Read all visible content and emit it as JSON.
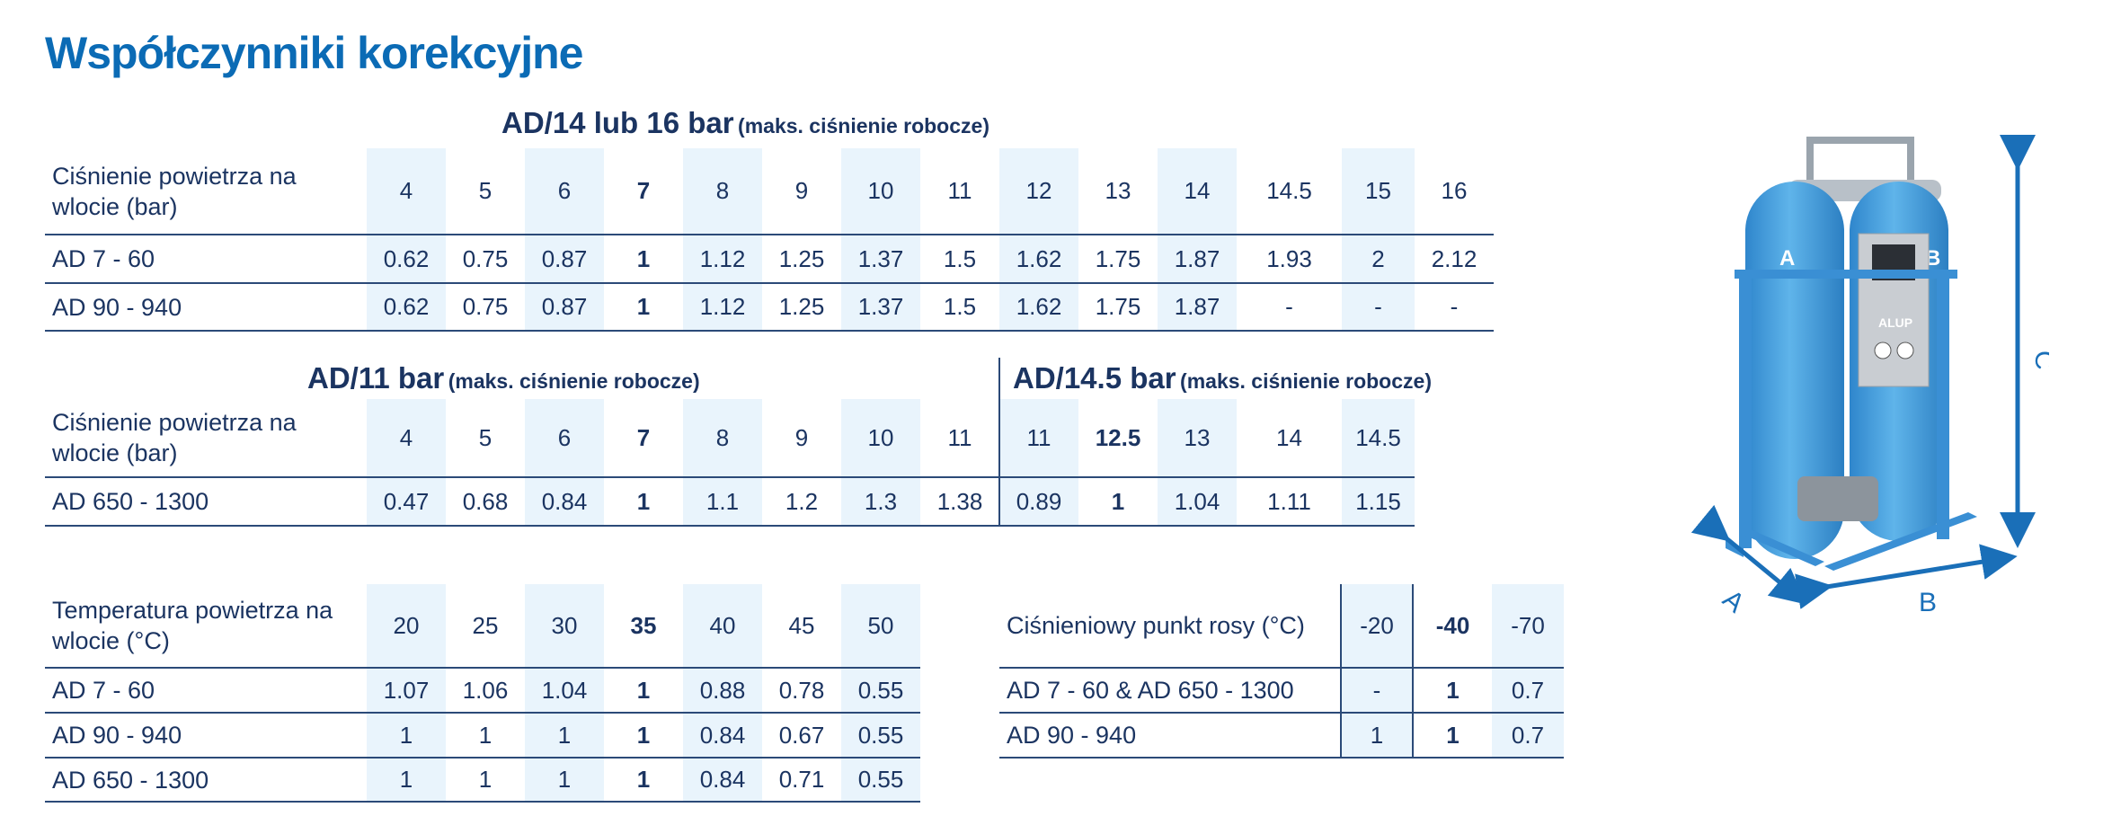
{
  "page_title": "Współczynniki korekcyjne",
  "table_pressure_14_16": {
    "title": "AD/14 lub 16 bar",
    "subtitle": "(maks. ciśnienie robocze)",
    "header_label": "Ciśnienie powietrza na wlocie (bar)",
    "columns": [
      "4",
      "5",
      "6",
      "7",
      "8",
      "9",
      "10",
      "11",
      "12",
      "13",
      "14",
      "14.5",
      "15",
      "16"
    ],
    "rows": [
      {
        "label": "AD 7 - 60",
        "values": [
          "0.62",
          "0.75",
          "0.87",
          "1",
          "1.12",
          "1.25",
          "1.37",
          "1.5",
          "1.62",
          "1.75",
          "1.87",
          "1.93",
          "2",
          "2.12"
        ]
      },
      {
        "label": "AD 90 - 940",
        "values": [
          "0.62",
          "0.75",
          "0.87",
          "1",
          "1.12",
          "1.25",
          "1.37",
          "1.5",
          "1.62",
          "1.75",
          "1.87",
          "-",
          "-",
          "-"
        ]
      }
    ]
  },
  "table_pressure_11": {
    "title": "AD/11 bar",
    "subtitle": "(maks. ciśnienie robocze)",
    "header_label": "Ciśnienie powietrza na wlocie (bar)",
    "columns": [
      "4",
      "5",
      "6",
      "7",
      "8",
      "9",
      "10",
      "11"
    ],
    "rows": [
      {
        "label": "AD 650 - 1300",
        "values": [
          "0.47",
          "0.68",
          "0.84",
          "1",
          "1.1",
          "1.2",
          "1.3",
          "1.38"
        ]
      }
    ]
  },
  "table_pressure_14_5": {
    "title": "AD/14.5 bar",
    "subtitle": "(maks. ciśnienie robocze)",
    "columns": [
      "11",
      "12.5",
      "13",
      "14",
      "14.5"
    ],
    "rows": [
      {
        "values": [
          "0.89",
          "1",
          "1.04",
          "1.11",
          "1.15"
        ]
      }
    ]
  },
  "table_temperature": {
    "header_label": "Temperatura powietrza na wlocie (°C)",
    "columns": [
      "20",
      "25",
      "30",
      "35",
      "40",
      "45",
      "50"
    ],
    "rows": [
      {
        "label": "AD 7 - 60",
        "values": [
          "1.07",
          "1.06",
          "1.04",
          "1",
          "0.88",
          "0.78",
          "0.55"
        ]
      },
      {
        "label": "AD 90 - 940",
        "values": [
          "1",
          "1",
          "1",
          "1",
          "0.84",
          "0.67",
          "0.55"
        ]
      },
      {
        "label": "AD 650 - 1300",
        "values": [
          "1",
          "1",
          "1",
          "1",
          "0.84",
          "0.71",
          "0.55"
        ]
      }
    ]
  },
  "table_dew_point": {
    "header_label": "Ciśnieniowy punkt rosy (°C)",
    "columns": [
      "-20",
      "-40",
      "-70"
    ],
    "rows": [
      {
        "label": "AD 7 - 60 & AD 650 - 1300",
        "values": [
          "-",
          "1",
          "0.7"
        ]
      },
      {
        "label": "AD 90 - 940",
        "values": [
          "1",
          "1",
          "0.7"
        ]
      }
    ]
  },
  "product_image": {
    "tank_labels": [
      "A",
      "B"
    ],
    "brand": "ALUP",
    "dimension_labels": {
      "a": "A",
      "b": "B",
      "c": "C"
    }
  },
  "colors": {
    "title": "#0b6bb5",
    "text": "#1b3461",
    "shade": "#e9f4fc",
    "tank": "#4aa3e0",
    "arrow": "#1a6fb8"
  }
}
